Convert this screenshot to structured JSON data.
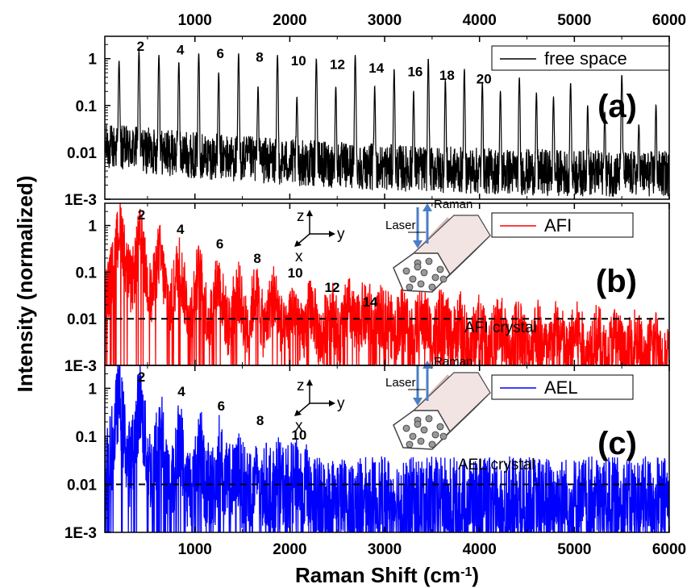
{
  "chart_data": {
    "type": "line",
    "xlabel": "Raman Shift (cm-1)",
    "xlabel_main": "Raman Shift (cm",
    "xlabel_sup": "-1",
    "xlabel_close": ")",
    "ylabel": "Intensity (normalized)",
    "xlim": [
      50,
      6000
    ],
    "ylog": true,
    "ylim": [
      0.001,
      3
    ],
    "x_ticks": [
      "1000",
      "2000",
      "3000",
      "4000",
      "5000",
      "6000"
    ],
    "y_ticks": [
      "1",
      "0.1",
      "0.01",
      "1E-3"
    ],
    "panels": [
      {
        "id": "a",
        "panel_label": "(a)",
        "legend": "free space",
        "color": "#000000",
        "noise_floor": 0.004,
        "peak_x": [
          200,
          410,
          620,
          830,
          1040,
          1250,
          1460,
          1665,
          1870,
          2075,
          2280,
          2485,
          2690,
          2895,
          3100,
          3305,
          3460,
          3640,
          3840,
          4030,
          4220,
          4420,
          4600,
          4780,
          4960,
          5140,
          5320,
          5500,
          5680,
          5860
        ],
        "peak_values": [
          0.9,
          1.5,
          1.2,
          0.85,
          1.3,
          0.5,
          1.3,
          0.25,
          1.2,
          0.15,
          1.0,
          0.25,
          1.2,
          0.25,
          0.6,
          0.2,
          1.0,
          0.35,
          0.6,
          0.3,
          0.2,
          0.4,
          0.18,
          0.15,
          0.3,
          0.1,
          0.07,
          0.45,
          0.035,
          0.1
        ],
        "peak_labels": [
          {
            "n": "2",
            "x": 410
          },
          {
            "n": "4",
            "x": 830
          },
          {
            "n": "6",
            "x": 1250
          },
          {
            "n": "8",
            "x": 1665
          },
          {
            "n": "10",
            "x": 2075
          },
          {
            "n": "12",
            "x": 2485
          },
          {
            "n": "14",
            "x": 2895
          },
          {
            "n": "16",
            "x": 3305
          },
          {
            "n": "18",
            "x": 3640
          },
          {
            "n": "20",
            "x": 4030
          }
        ]
      },
      {
        "id": "b",
        "panel_label": "(b)",
        "legend": "AFI",
        "color": "#ff0000",
        "noise_floor": 0.002,
        "dashed_level": 0.01,
        "crystal_label": "AFI  crystal",
        "laser_label": "Laser",
        "raman_label": "Raman",
        "peak_x": [
          210,
          420,
          625,
          830,
          1040,
          1245,
          1450,
          1640,
          1830,
          2040,
          2225,
          2430,
          2620,
          2830,
          3030,
          3230,
          3430,
          3630
        ],
        "peak_values": [
          0.95,
          0.5,
          0.24,
          0.14,
          0.09,
          0.06,
          0.04,
          0.032,
          0.032,
          0.018,
          0.017,
          0.017,
          0.017,
          0.013,
          0.01,
          0.009,
          0.008,
          0.008
        ],
        "peak_labels": [
          {
            "n": "2",
            "x": 420
          },
          {
            "n": "4",
            "x": 830
          },
          {
            "n": "6",
            "x": 1245
          },
          {
            "n": "8",
            "x": 1640
          },
          {
            "n": "10",
            "x": 2040
          },
          {
            "n": "12",
            "x": 2430
          },
          {
            "n": "14",
            "x": 2830
          }
        ]
      },
      {
        "id": "c",
        "panel_label": "(c)",
        "legend": "AEL",
        "color": "#0000ff",
        "noise_floor": 0.003,
        "dashed_level": 0.01,
        "crystal_label": "AEL crystal",
        "laser_label": "Laser",
        "raman_label": "Raman",
        "peak_x": [
          200,
          420,
          630,
          840,
          1050,
          1260,
          1460,
          1670,
          1870,
          2080
        ],
        "peak_values": [
          0.9,
          0.7,
          0.25,
          0.13,
          0.1,
          0.06,
          0.03,
          0.025,
          0.02,
          0.02
        ],
        "peak_labels": [
          {
            "n": "2",
            "x": 420
          },
          {
            "n": "4",
            "x": 840
          },
          {
            "n": "6",
            "x": 1260
          },
          {
            "n": "8",
            "x": 1670
          },
          {
            "n": "10",
            "x": 2080
          }
        ]
      }
    ],
    "axes_labels": {
      "z": "z",
      "y": "y",
      "x": "x"
    }
  }
}
